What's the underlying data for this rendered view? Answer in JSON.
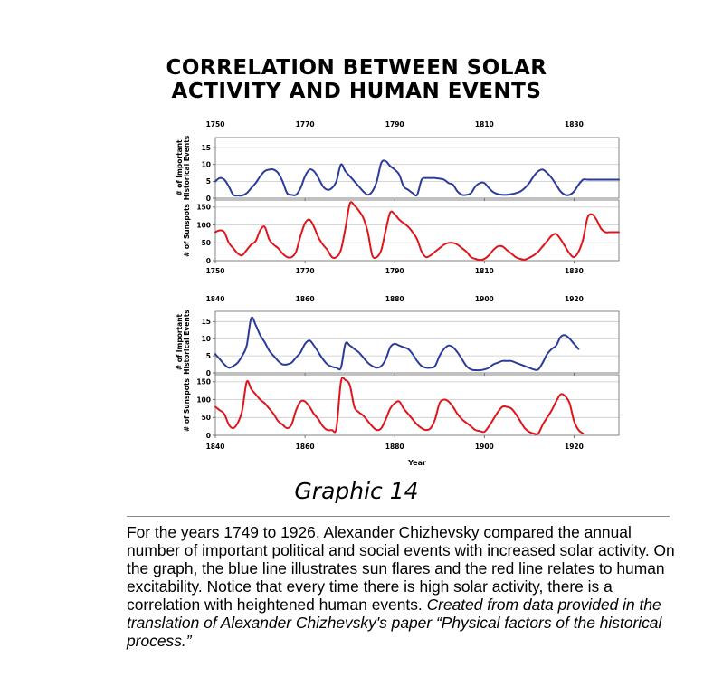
{
  "title_line1": "CORRELATION BETWEEN SOLAR",
  "title_line2": "ACTIVITY AND HUMAN EVENTS",
  "graphic_label": "Graphic 14",
  "caption_text": "For the years 1749 to 1926, Alexander Chizhevsky compared the annual number of important political and social events with increased solar activity. On the graph, the blue line illustrates sun flares and the red line relates to human excitability. Notice that every time there is high solar activity, there is a correlation with heightened human events.",
  "caption_italic": "Created from data provided in the translation of Alexander Chizhevsky's paper “Physical factors of the historical process.”",
  "colors": {
    "events": "#2b3b9a",
    "sunspots": "#e0141b"
  },
  "chart_data": [
    {
      "type": "line",
      "xlim": [
        1750,
        1840
      ],
      "xticks": [
        1750,
        1770,
        1790,
        1810,
        1830
      ],
      "xlabel": "",
      "panels": [
        {
          "ylabel": "# of Important Historical Events",
          "ylim": [
            0,
            18
          ],
          "yticks": [
            0,
            5,
            10,
            15
          ],
          "series": [
            {
              "color": "#2b3b9a",
              "x": [
                1750,
                1751,
                1752,
                1753,
                1754,
                1755,
                1756,
                1757,
                1758,
                1759,
                1760,
                1761,
                1762,
                1763,
                1764,
                1765,
                1766,
                1767,
                1768,
                1769,
                1770,
                1771,
                1772,
                1773,
                1774,
                1775,
                1776,
                1777,
                1778,
                1779,
                1780,
                1781,
                1782,
                1783,
                1784,
                1785,
                1786,
                1787,
                1788,
                1789,
                1790,
                1791,
                1792,
                1793,
                1794,
                1795,
                1796,
                1797,
                1798,
                1799,
                1800,
                1801,
                1802,
                1803,
                1804,
                1805,
                1806,
                1807,
                1808,
                1809,
                1810,
                1811,
                1812,
                1813,
                1814,
                1815,
                1816,
                1817,
                1818,
                1819,
                1820,
                1821,
                1822,
                1823,
                1824,
                1825,
                1826,
                1827,
                1828,
                1829,
                1830,
                1831,
                1832,
                1833,
                1834,
                1835,
                1836,
                1837,
                1838,
                1839,
                1840
              ],
              "values": [
                5,
                6,
                5.5,
                3.5,
                1,
                0.8,
                0.8,
                1.5,
                3,
                4.5,
                6.5,
                8,
                8.5,
                8.5,
                7.5,
                5,
                1.5,
                1,
                1,
                3,
                6.5,
                8.5,
                8,
                6,
                3.5,
                2.5,
                3,
                5,
                10,
                8,
                6.5,
                5,
                3.5,
                2,
                1,
                2,
                5,
                10.5,
                11,
                9.5,
                8.5,
                7,
                3.5,
                2.5,
                1.5,
                1,
                5.5,
                6,
                6,
                6,
                5.8,
                5.5,
                4.5,
                4,
                2,
                1,
                1,
                1.5,
                3.5,
                4.5,
                4.5,
                3,
                1.8,
                1.2,
                1,
                1,
                1.2,
                1.5,
                2,
                3,
                4.5,
                6.5,
                8,
                8.5,
                7.5,
                6,
                4,
                2,
                1,
                1,
                2,
                4,
                5.5,
                5.5,
                5.5,
                5.5,
                5.5,
                5.5,
                5.5,
                5.5,
                5.5
              ]
            }
          ]
        },
        {
          "ylabel": "# of Sunspots",
          "ylim": [
            0,
            170
          ],
          "yticks": [
            0,
            50,
            100,
            150
          ],
          "series": [
            {
              "color": "#e0141b",
              "x": [
                1750,
                1751,
                1752,
                1753,
                1754,
                1755,
                1756,
                1757,
                1758,
                1759,
                1760,
                1761,
                1762,
                1763,
                1764,
                1765,
                1766,
                1767,
                1768,
                1769,
                1770,
                1771,
                1772,
                1773,
                1774,
                1775,
                1776,
                1777,
                1778,
                1779,
                1780,
                1781,
                1782,
                1783,
                1784,
                1785,
                1786,
                1787,
                1788,
                1789,
                1790,
                1791,
                1792,
                1793,
                1794,
                1795,
                1796,
                1797,
                1798,
                1799,
                1800,
                1801,
                1802,
                1803,
                1804,
                1805,
                1806,
                1807,
                1808,
                1809,
                1810,
                1811,
                1812,
                1813,
                1814,
                1815,
                1816,
                1817,
                1818,
                1819,
                1820,
                1821,
                1822,
                1823,
                1824,
                1825,
                1826,
                1827,
                1828,
                1829,
                1830,
                1831,
                1832,
                1833,
                1834,
                1835,
                1836,
                1837,
                1838,
                1839,
                1840
              ],
              "values": [
                80,
                85,
                80,
                50,
                35,
                20,
                15,
                30,
                45,
                55,
                85,
                95,
                60,
                45,
                35,
                20,
                10,
                10,
                25,
                70,
                105,
                115,
                95,
                65,
                45,
                30,
                10,
                10,
                30,
                90,
                160,
                155,
                140,
                120,
                80,
                15,
                10,
                30,
                85,
                135,
                130,
                115,
                105,
                95,
                80,
                60,
                25,
                10,
                15,
                25,
                35,
                45,
                50,
                50,
                45,
                35,
                25,
                10,
                5,
                2,
                5,
                15,
                30,
                40,
                40,
                30,
                20,
                10,
                5,
                3,
                8,
                15,
                25,
                40,
                55,
                70,
                75,
                60,
                40,
                20,
                10,
                25,
                60,
                120,
                130,
                115,
                90,
                80,
                80,
                80,
                80
              ]
            }
          ]
        }
      ]
    },
    {
      "type": "line",
      "xlim": [
        1840,
        1930
      ],
      "xticks": [
        1840,
        1860,
        1880,
        1900,
        1920
      ],
      "xlabel": "Year",
      "panels": [
        {
          "ylabel": "# of Important Historical Events",
          "ylim": [
            0,
            18
          ],
          "yticks": [
            0,
            5,
            10,
            15
          ],
          "series": [
            {
              "color": "#2b3b9a",
              "x": [
                1840,
                1841,
                1842,
                1843,
                1844,
                1845,
                1846,
                1847,
                1848,
                1849,
                1850,
                1851,
                1852,
                1853,
                1854,
                1855,
                1856,
                1857,
                1858,
                1859,
                1860,
                1861,
                1862,
                1863,
                1864,
                1865,
                1866,
                1867,
                1868,
                1869,
                1870,
                1871,
                1872,
                1873,
                1874,
                1875,
                1876,
                1877,
                1878,
                1879,
                1880,
                1881,
                1882,
                1883,
                1884,
                1885,
                1886,
                1887,
                1888,
                1889,
                1890,
                1891,
                1892,
                1893,
                1894,
                1895,
                1896,
                1897,
                1898,
                1899,
                1900,
                1901,
                1902,
                1903,
                1904,
                1905,
                1906,
                1907,
                1908,
                1909,
                1910,
                1911,
                1912,
                1913,
                1914,
                1915,
                1916,
                1917,
                1918,
                1919,
                1920,
                1921
              ],
              "values": [
                5.5,
                4,
                2.5,
                1.5,
                2,
                3,
                5,
                8,
                16,
                14,
                11,
                9,
                6.5,
                5,
                3.5,
                2.5,
                2.5,
                3,
                4.5,
                6,
                8.5,
                9.5,
                8,
                6,
                4,
                2.5,
                1.8,
                1.5,
                1.5,
                8.5,
                8,
                7,
                6,
                4.5,
                3,
                2,
                1.5,
                2,
                4,
                7.5,
                8.5,
                8,
                7.5,
                7,
                5.5,
                3.5,
                2,
                1.5,
                1.5,
                2,
                5,
                7,
                8,
                7.5,
                6,
                4,
                2,
                1,
                0.8,
                0.8,
                1,
                1.5,
                2.5,
                3,
                3.5,
                3.5,
                3.5,
                3,
                2.5,
                2,
                1.5,
                1,
                1,
                3,
                5.5,
                7,
                8,
                10.5,
                11,
                10,
                8.5,
                7
              ]
            }
          ]
        },
        {
          "ylabel": "# of Sunspots",
          "ylim": [
            0,
            170
          ],
          "yticks": [
            0,
            50,
            100,
            150
          ],
          "series": [
            {
              "color": "#e0141b",
              "x": [
                1840,
                1841,
                1842,
                1843,
                1844,
                1845,
                1846,
                1847,
                1848,
                1849,
                1850,
                1851,
                1852,
                1853,
                1854,
                1855,
                1856,
                1857,
                1858,
                1859,
                1860,
                1861,
                1862,
                1863,
                1864,
                1865,
                1866,
                1867,
                1868,
                1869,
                1870,
                1871,
                1872,
                1873,
                1874,
                1875,
                1876,
                1877,
                1878,
                1879,
                1880,
                1881,
                1882,
                1883,
                1884,
                1885,
                1886,
                1887,
                1888,
                1889,
                1890,
                1891,
                1892,
                1893,
                1894,
                1895,
                1896,
                1897,
                1898,
                1899,
                1900,
                1901,
                1902,
                1903,
                1904,
                1905,
                1906,
                1907,
                1908,
                1909,
                1910,
                1911,
                1912,
                1913,
                1914,
                1915,
                1916,
                1917,
                1918,
                1919,
                1920,
                1921,
                1922
              ],
              "values": [
                80,
                70,
                60,
                30,
                20,
                35,
                70,
                150,
                130,
                115,
                100,
                90,
                75,
                60,
                40,
                30,
                20,
                30,
                70,
                95,
                95,
                80,
                60,
                45,
                25,
                15,
                15,
                20,
                150,
                155,
                140,
                80,
                65,
                55,
                40,
                25,
                15,
                20,
                45,
                75,
                90,
                95,
                75,
                60,
                45,
                30,
                20,
                15,
                20,
                45,
                90,
                100,
                95,
                80,
                60,
                45,
                35,
                25,
                15,
                12,
                10,
                25,
                45,
                65,
                80,
                80,
                75,
                60,
                40,
                20,
                10,
                5,
                5,
                30,
                50,
                70,
                95,
                115,
                110,
                90,
                40,
                15,
                5
              ]
            }
          ]
        }
      ]
    }
  ]
}
